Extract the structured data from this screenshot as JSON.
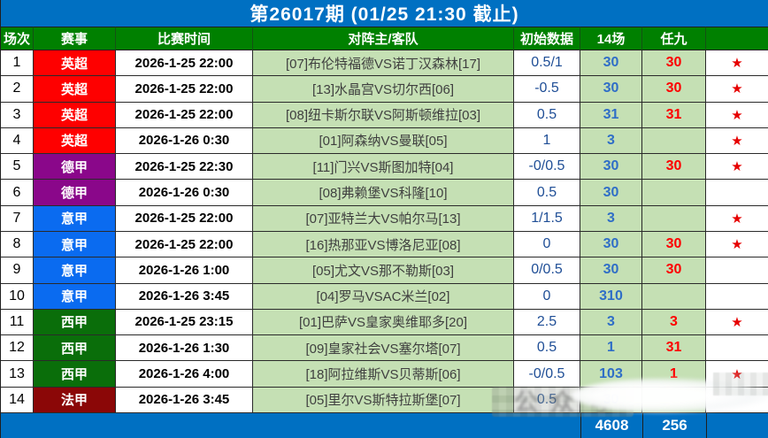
{
  "title": "第26017期 (01/25 21:30 截止)",
  "header": {
    "cols": [
      "场次",
      "赛事",
      "比赛时间",
      "对阵主/客队",
      "初始数据",
      "14场",
      "任九",
      ""
    ]
  },
  "league_colors": {
    "英超": "#fe0000",
    "德甲": "#8a078a",
    "意甲": "#0a6bf0",
    "西甲": "#0a6e0a",
    "法甲": "#8b0707"
  },
  "rows": [
    {
      "no": "1",
      "league": "英超",
      "time": "2026-1-25 22:00",
      "match": "[07]布伦特福德VS诺丁汉森林[17]",
      "odds": "0.5/1",
      "c14": "30",
      "r9": "30",
      "star": "★"
    },
    {
      "no": "2",
      "league": "英超",
      "time": "2026-1-25 22:00",
      "match": "[13]水晶宫VS切尔西[06]",
      "odds": "-0.5",
      "c14": "30",
      "r9": "30",
      "star": "★"
    },
    {
      "no": "3",
      "league": "英超",
      "time": "2026-1-25 22:00",
      "match": "[08]纽卡斯尔联VS阿斯顿维拉[03]",
      "odds": "0.5",
      "c14": "31",
      "r9": "31",
      "star": "★"
    },
    {
      "no": "4",
      "league": "英超",
      "time": "2026-1-26 0:30",
      "match": "[01]阿森纳VS曼联[05]",
      "odds": "1",
      "c14": "3",
      "r9": "",
      "star": "★"
    },
    {
      "no": "5",
      "league": "德甲",
      "time": "2026-1-25 22:30",
      "match": "[11]门兴VS斯图加特[04]",
      "odds": "-0/0.5",
      "c14": "30",
      "r9": "30",
      "star": "★"
    },
    {
      "no": "6",
      "league": "德甲",
      "time": "2026-1-26 0:30",
      "match": "[08]弗赖堡VS科隆[10]",
      "odds": "0.5",
      "c14": "30",
      "r9": "",
      "star": ""
    },
    {
      "no": "7",
      "league": "意甲",
      "time": "2026-1-25 22:00",
      "match": "[07]亚特兰大VS帕尔马[13]",
      "odds": "1/1.5",
      "c14": "3",
      "r9": "",
      "star": "★"
    },
    {
      "no": "8",
      "league": "意甲",
      "time": "2026-1-25 22:00",
      "match": "[16]热那亚VS博洛尼亚[08]",
      "odds": "0",
      "c14": "30",
      "r9": "30",
      "star": "★"
    },
    {
      "no": "9",
      "league": "意甲",
      "time": "2026-1-26 1:00",
      "match": "[05]尤文VS那不勒斯[03]",
      "odds": "0/0.5",
      "c14": "30",
      "r9": "30",
      "star": ""
    },
    {
      "no": "10",
      "league": "意甲",
      "time": "2026-1-26 3:45",
      "match": "[04]罗马VSAC米兰[02]",
      "odds": "0",
      "c14": "310",
      "r9": "",
      "star": ""
    },
    {
      "no": "11",
      "league": "西甲",
      "time": "2026-1-25 23:15",
      "match": "[01]巴萨VS皇家奥维耶多[20]",
      "odds": "2.5",
      "c14": "3",
      "r9": "3",
      "star": "★"
    },
    {
      "no": "12",
      "league": "西甲",
      "time": "2026-1-26 1:30",
      "match": "[09]皇家社会VS塞尔塔[07]",
      "odds": "0.5",
      "c14": "1",
      "r9": "31",
      "star": ""
    },
    {
      "no": "13",
      "league": "西甲",
      "time": "2026-1-26 4:00",
      "match": "[18]阿拉维斯VS贝蒂斯[06]",
      "odds": "-0/0.5",
      "c14": "103",
      "r9": "1",
      "star": "★"
    },
    {
      "no": "14",
      "league": "法甲",
      "time": "2026-1-26 3:45",
      "match": "[05]里尔VS斯特拉斯堡[07]",
      "odds": "0.5",
      "c14": "30",
      "r9": "",
      "star": ""
    }
  ],
  "footer": {
    "c14_total": "4608",
    "r9_total": "256"
  },
  "watermark": {
    "text": "公众号"
  }
}
